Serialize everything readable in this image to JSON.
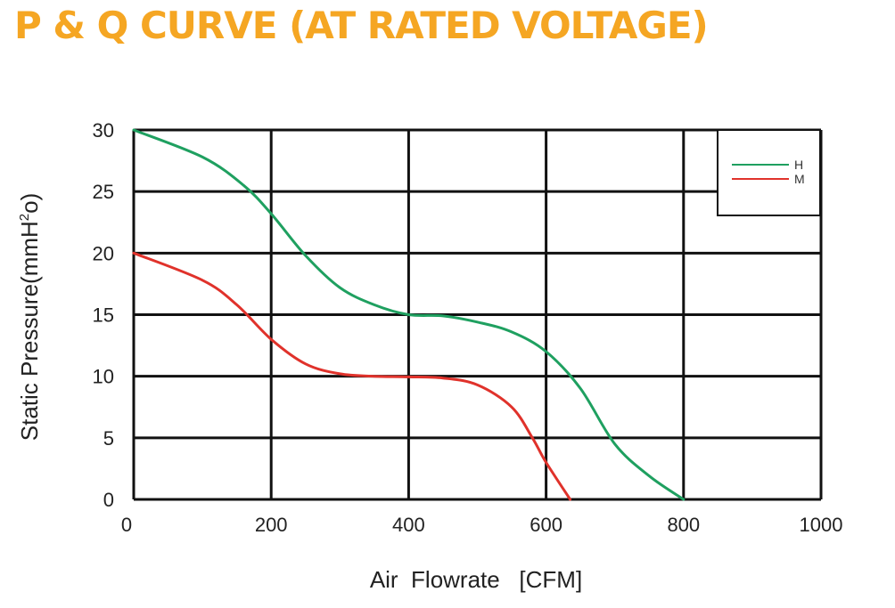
{
  "title": "P & Q CURVE (AT RATED VOLTAGE)",
  "colors": {
    "title": "#f5a623",
    "grid": "#111111",
    "series_h": "#1fa060",
    "series_m": "#e0322b"
  },
  "chart_data": {
    "type": "line",
    "xlabel": "Air  Flowrate   [CFM]",
    "ylabel_parts": [
      "Static Pressure(mmH",
      "2",
      "o)"
    ],
    "xlim": [
      0,
      1000
    ],
    "ylim": [
      0,
      30
    ],
    "x_ticks": [
      0,
      200,
      400,
      600,
      800,
      1000
    ],
    "y_ticks": [
      0,
      5,
      10,
      15,
      20,
      25,
      30
    ],
    "grid": true,
    "legend_position": "top-right",
    "series": [
      {
        "name": "H",
        "color": "#1fa060",
        "x": [
          0,
          100,
          160,
          200,
          250,
          300,
          350,
          400,
          450,
          500,
          550,
          600,
          650,
          700,
          750,
          800
        ],
        "y": [
          30,
          27.8,
          25.5,
          23.2,
          19.8,
          17.2,
          15.8,
          15.0,
          14.9,
          14.4,
          13.6,
          12.0,
          9.0,
          4.5,
          1.9,
          0
        ]
      },
      {
        "name": "M",
        "color": "#e0322b",
        "x": [
          0,
          100,
          150,
          200,
          250,
          300,
          350,
          400,
          450,
          500,
          550,
          580,
          600,
          635
        ],
        "y": [
          20,
          17.8,
          15.8,
          13.0,
          11.0,
          10.2,
          10.0,
          9.95,
          9.85,
          9.3,
          7.5,
          5.0,
          3.0,
          0
        ]
      }
    ]
  }
}
